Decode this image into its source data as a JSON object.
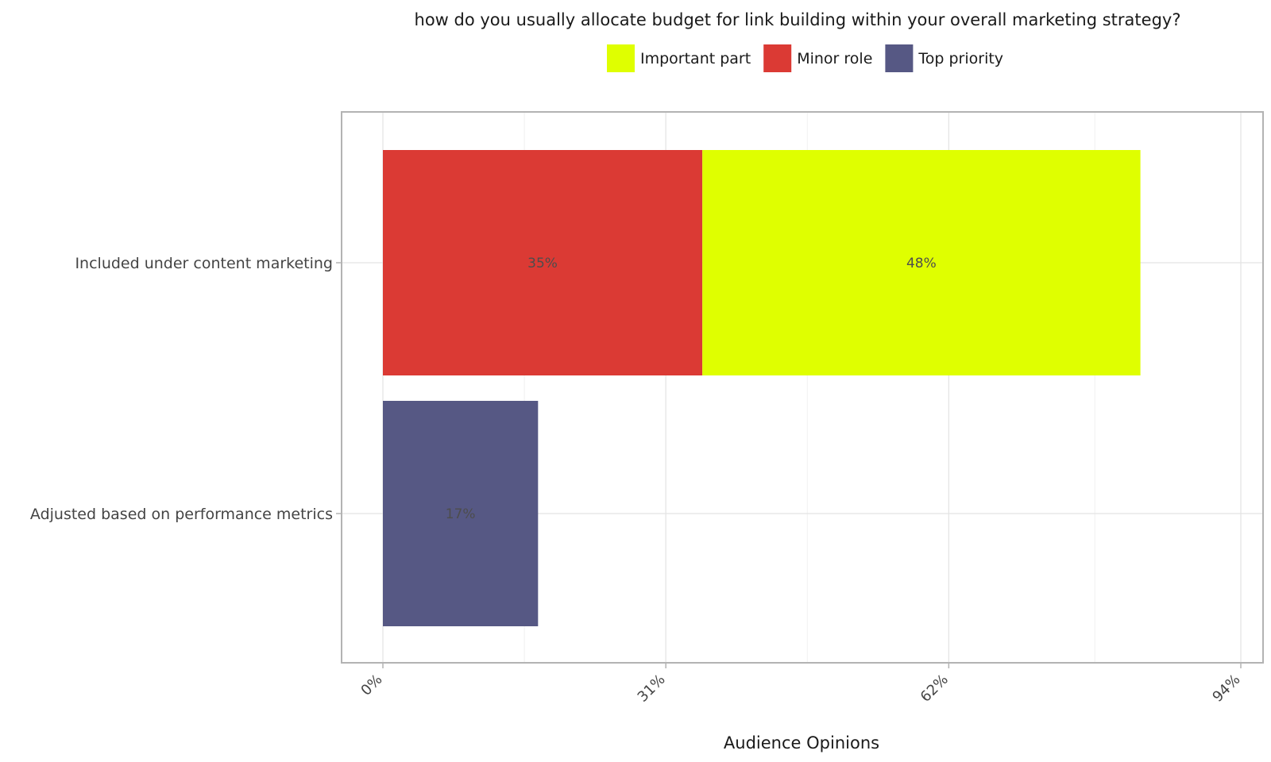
{
  "chart_data": {
    "type": "bar",
    "orientation": "horizontal",
    "stacked": true,
    "title": "how do you usually allocate budget for link building within your overall marketing strategy?",
    "xlabel": "Audience Opinions",
    "ylabel": "",
    "categories": [
      "Included under content marketing",
      "Adjusted based on performance metrics"
    ],
    "series": [
      {
        "name": "Minor role",
        "color": "#db3a34",
        "values": [
          35,
          0
        ]
      },
      {
        "name": "Important part",
        "color": "#dfff00",
        "values": [
          48,
          0
        ]
      },
      {
        "name": "Top priority",
        "color": "#565884",
        "values": [
          0,
          17
        ]
      }
    ],
    "data_labels": [
      [
        "35%",
        "48%"
      ],
      [
        "17%"
      ]
    ],
    "legend_order": [
      "Important part",
      "Minor role",
      "Top priority"
    ],
    "xlim": [
      0,
      94
    ],
    "xticks": [
      0,
      31,
      62,
      94
    ],
    "xtick_labels": [
      "0%",
      "31%",
      "62%",
      "94%"
    ],
    "grid": true,
    "legend_position": "top"
  }
}
